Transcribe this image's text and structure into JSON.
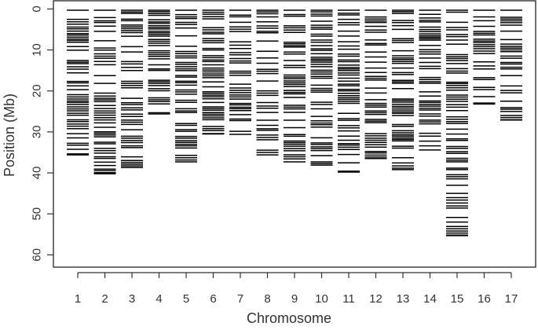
{
  "chart_data": {
    "type": "scatter",
    "xlabel": "Chromosome",
    "ylabel": "Position (Mb)",
    "categories": [
      "1",
      "2",
      "3",
      "4",
      "5",
      "6",
      "7",
      "8",
      "9",
      "10",
      "11",
      "12",
      "13",
      "14",
      "15",
      "16",
      "17"
    ],
    "y_ticks": [
      "0",
      "10",
      "20",
      "30",
      "40",
      "50",
      "60"
    ],
    "ylim": [
      63,
      -2
    ],
    "y_reversed": true,
    "xlim": [
      0.1,
      17.9
    ],
    "grid": false,
    "legend": "none",
    "mark_color": "#000000",
    "chromosome_lengths_mb": [
      35.6,
      40.2,
      38.7,
      25.6,
      37.3,
      30.5,
      30.6,
      35.6,
      37.3,
      38.1,
      39.8,
      36.5,
      39.2,
      34.4,
      55.3,
      23.2,
      27.1
    ]
  }
}
